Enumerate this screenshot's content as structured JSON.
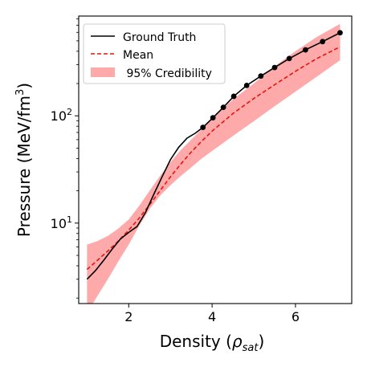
{
  "chart_data": {
    "type": "line",
    "xlabel_main": "Density (",
    "xlabel_symbol": "ρ",
    "xlabel_sub": "sat",
    "xlabel_close": ")",
    "ylabel_main": "Pressure (MeV/fm",
    "ylabel_sup": "3",
    "ylabel_close": ")",
    "xlim": [
      0.8,
      7.35
    ],
    "ylim_log10": [
      0.25,
      2.93
    ],
    "y_scale": "log",
    "grid": false,
    "legend_position": "top-left",
    "x_ticks": [
      {
        "value": 2,
        "label": "2"
      },
      {
        "value": 4,
        "label": "4"
      },
      {
        "value": 6,
        "label": "6"
      }
    ],
    "y_ticks": [
      {
        "value": 10,
        "base": "10",
        "exp": "1"
      },
      {
        "value": 100,
        "base": "10",
        "exp": "2"
      }
    ],
    "legend": [
      {
        "label": "Ground Truth",
        "style": "solid",
        "color": "#000000"
      },
      {
        "label": "Mean",
        "style": "dashed",
        "color": "#e8120c"
      },
      {
        "label": " 95% Credibility",
        "style": "band",
        "color": "#ffaaaa"
      }
    ],
    "series": [
      {
        "name": "Ground Truth",
        "color": "#000000",
        "x": [
          1.0,
          1.2,
          1.4,
          1.6,
          1.8,
          2.0,
          2.2,
          2.4,
          2.6,
          2.8,
          3.0,
          3.2,
          3.4,
          3.6,
          3.78,
          4.02,
          4.27,
          4.52,
          4.83,
          5.17,
          5.5,
          5.85,
          6.24,
          6.65,
          7.07
        ],
        "y": [
          3.0,
          3.6,
          4.5,
          5.7,
          7.1,
          8.2,
          9.3,
          12.5,
          18.5,
          27,
          39,
          51,
          62,
          69,
          78,
          96,
          120,
          152,
          192,
          235,
          282,
          342,
          412,
          492,
          595
        ]
      },
      {
        "name": "Mean",
        "color": "#e8120c",
        "x": [
          1.0,
          1.25,
          1.5,
          1.75,
          2.0,
          2.25,
          2.5,
          2.75,
          3.0,
          3.25,
          3.5,
          3.75,
          4.0,
          4.5,
          5.0,
          5.5,
          6.0,
          6.5,
          7.07
        ],
        "y": [
          3.7,
          4.5,
          5.5,
          6.8,
          8.6,
          11.1,
          14.8,
          20.0,
          27.0,
          35.5,
          46,
          58,
          72,
          105,
          145,
          195,
          260,
          340,
          440
        ]
      }
    ],
    "markers": {
      "series": "Ground Truth",
      "x": [
        3.78,
        4.02,
        4.27,
        4.52,
        4.83,
        5.17,
        5.5,
        5.85,
        6.24,
        6.65,
        7.07
      ],
      "y": [
        78,
        96,
        120,
        152,
        192,
        235,
        282,
        342,
        412,
        492,
        595
      ]
    },
    "band": {
      "name": " 95% Credibility",
      "color": "#ffaaaa",
      "x": [
        1.0,
        1.25,
        1.5,
        1.75,
        2.0,
        2.25,
        2.5,
        2.75,
        3.0,
        3.25,
        3.5,
        3.75,
        4.0,
        4.5,
        5.0,
        5.5,
        6.0,
        6.5,
        7.07
      ],
      "lower": [
        1.45,
        2.1,
        3.0,
        4.4,
        6.3,
        9.4,
        13.5,
        18.0,
        22.5,
        27.5,
        33,
        40,
        47,
        65,
        89,
        123,
        168,
        230,
        330
      ],
      "upper": [
        6.3,
        6.8,
        7.6,
        8.9,
        10.8,
        14.5,
        20.0,
        27.5,
        37,
        48,
        60,
        75,
        95,
        142,
        200,
        290,
        400,
        540,
        720
      ]
    }
  }
}
